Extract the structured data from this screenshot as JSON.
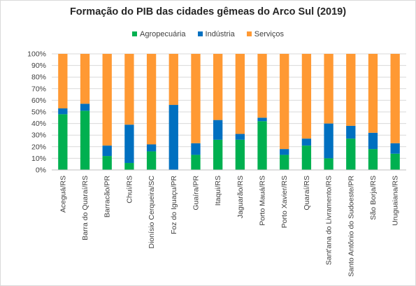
{
  "chart_data": {
    "type": "bar",
    "stacked": true,
    "title": "Formação do PIB das cidades gêmeas do Arco Sul (2019)",
    "categories": [
      "Aceguá/RS",
      "Barra do Quaraí/RS",
      "Barracão/PR",
      "Chuí/RS",
      "Dionísio Cerqueira/SC",
      "Foz do Iguaçu/PR",
      "Guaíra/PR",
      "Itaqui/RS",
      "Jaguarão/RS",
      "Porto Mauá/RS",
      "Porto Xavier/RS",
      "Quaraí/RS",
      "Sant'ana do Livramento/RS",
      "Santo Antônio do Sudoeste/PR",
      "São Borja/RS",
      "Uruguaiana/RS"
    ],
    "series": [
      {
        "name": "Agropecuária",
        "color": "#00b050",
        "values": [
          48,
          51,
          12,
          6,
          16,
          0,
          13,
          26,
          26,
          42,
          13,
          21,
          10,
          27,
          18,
          14
        ]
      },
      {
        "name": "Indústria",
        "color": "#0070c0",
        "values": [
          5,
          6,
          9,
          33,
          6,
          56,
          10,
          17,
          5,
          3,
          5,
          6,
          30,
          11,
          14,
          9
        ]
      },
      {
        "name": "Serviços",
        "color": "#ff9933",
        "values": [
          47,
          43,
          79,
          61,
          78,
          44,
          77,
          57,
          69,
          55,
          82,
          73,
          60,
          62,
          68,
          77
        ]
      }
    ],
    "yticks": [
      "0%",
      "10%",
      "20%",
      "30%",
      "40%",
      "50%",
      "60%",
      "70%",
      "80%",
      "90%",
      "100%"
    ],
    "ylim": [
      0,
      100
    ],
    "grid": true,
    "legend_position": "top"
  }
}
